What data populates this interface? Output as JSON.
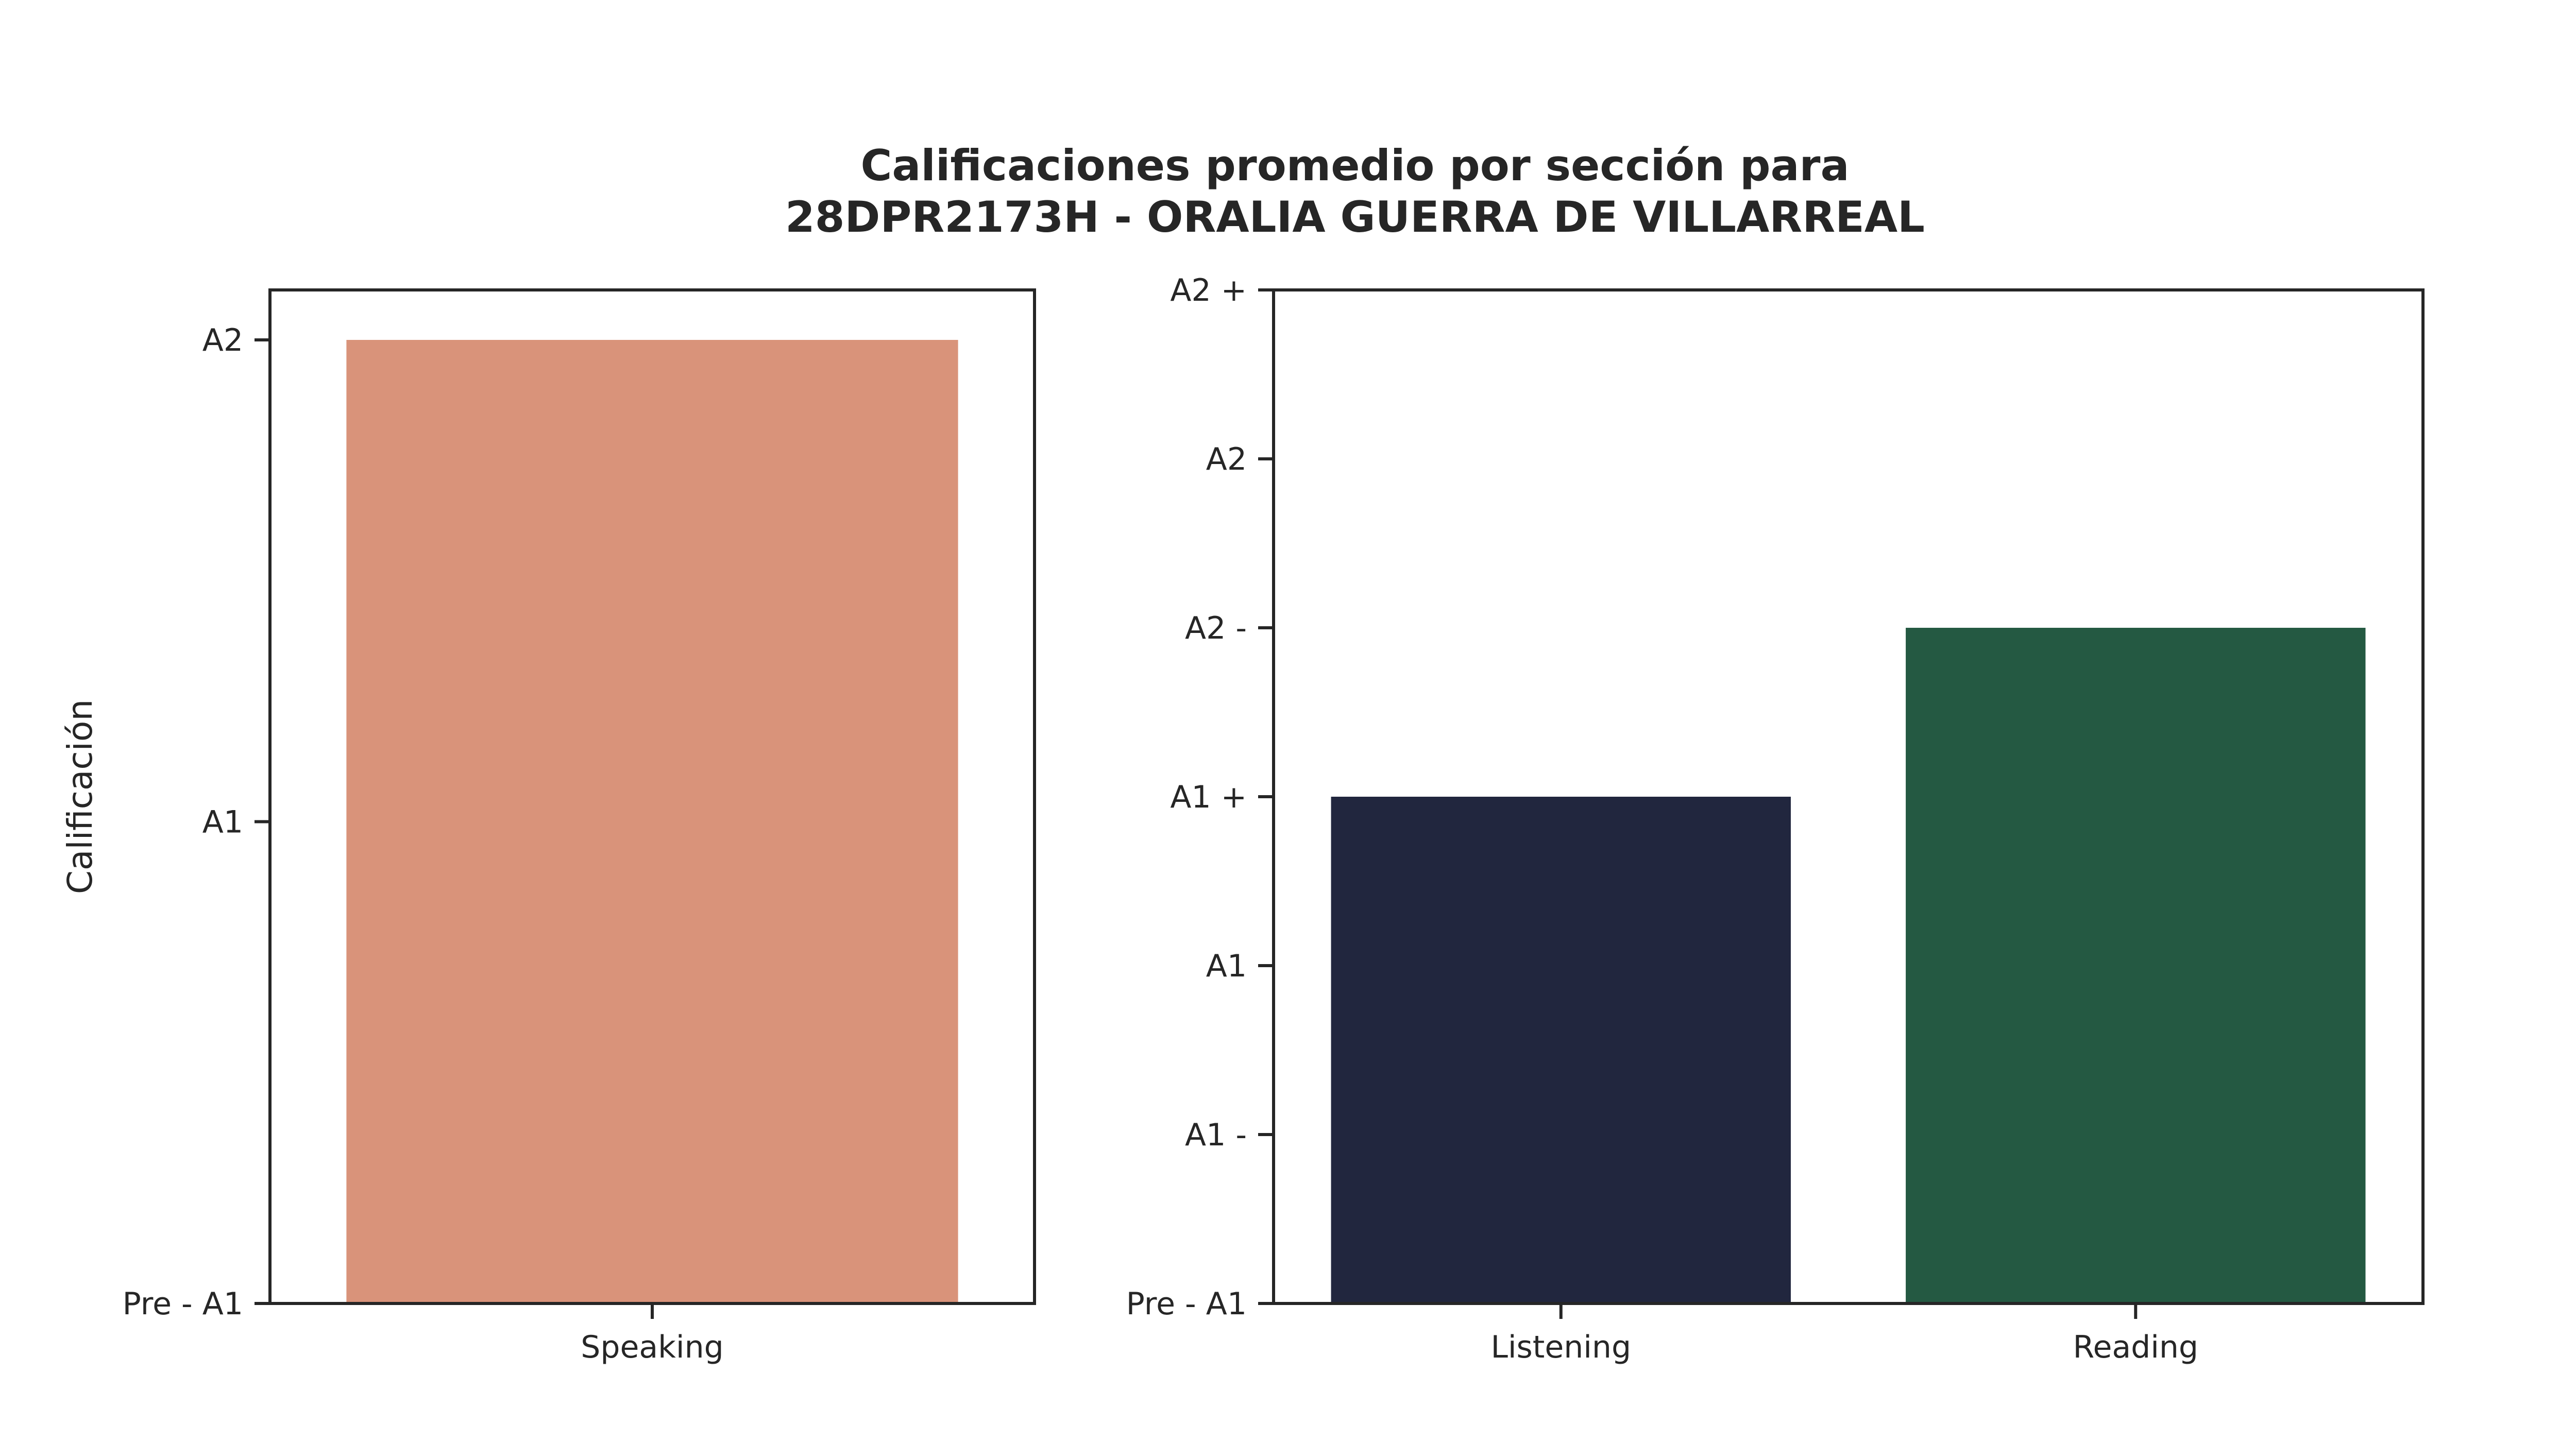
{
  "title_lines": [
    "Calificaciones promedio por sección para",
    "28DPR2173H - ORALIA GUERRA DE VILLARREAL"
  ],
  "chart_data": [
    {
      "type": "bar",
      "ylabel": "Calificación",
      "categories": [
        "Speaking"
      ],
      "values": [
        2
      ],
      "colors": [
        "#d9937a"
      ],
      "ylim": [
        0,
        2
      ],
      "yticks": [
        {
          "value": 0,
          "label": "Pre - A1"
        },
        {
          "value": 1,
          "label": "A1"
        },
        {
          "value": 2,
          "label": "A2"
        }
      ]
    },
    {
      "type": "bar",
      "ylabel": "",
      "categories": [
        "Listening",
        "Reading"
      ],
      "values": [
        3,
        4
      ],
      "colors": [
        "#21263e",
        "#245942"
      ],
      "ylim": [
        0,
        6
      ],
      "yticks": [
        {
          "value": 0,
          "label": "Pre - A1"
        },
        {
          "value": 1,
          "label": "A1 -"
        },
        {
          "value": 2,
          "label": "A1"
        },
        {
          "value": 3,
          "label": "A1 +"
        },
        {
          "value": 4,
          "label": "A2 -"
        },
        {
          "value": 5,
          "label": "A2"
        },
        {
          "value": 6,
          "label": "A2 +"
        }
      ]
    }
  ]
}
